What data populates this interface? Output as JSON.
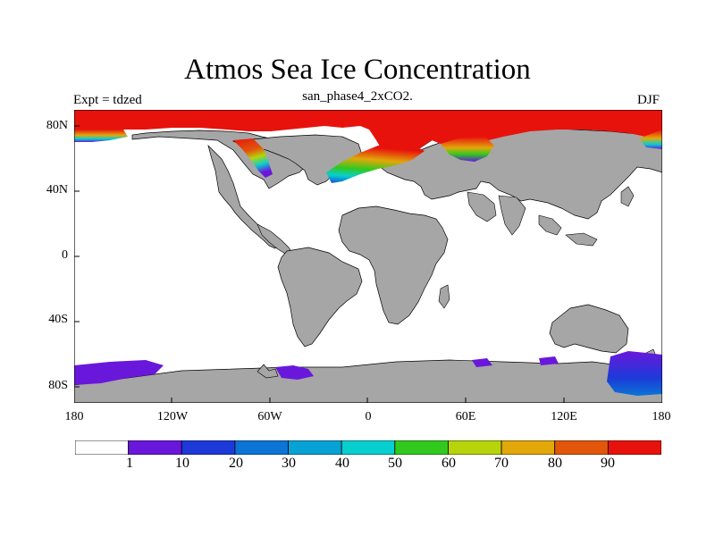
{
  "title": "Atmos Sea Ice Concentration",
  "subtitle": "san_phase4_2xCO2.",
  "left_label": "Expt = tdzed",
  "right_label": "DJF",
  "lat_labels": [
    "80N",
    "40N",
    "0",
    "40S",
    "80S"
  ],
  "lon_labels": [
    "180",
    "120W",
    "60W",
    "0",
    "60E",
    "120E",
    "180"
  ],
  "colorbar": {
    "colors": [
      "#ffffff",
      "#6a17dc",
      "#1d3ad8",
      "#0b74d6",
      "#06a2d6",
      "#08cfcf",
      "#31c91e",
      "#b5d40a",
      "#e2a80a",
      "#e2570c",
      "#e8120c"
    ],
    "labels": [
      "1",
      "10",
      "20",
      "30",
      "40",
      "50",
      "60",
      "70",
      "80",
      "90"
    ]
  },
  "colors": {
    "land": "#a6a6a6",
    "ocean": "#ffffff",
    "ice_high": "#e8120c"
  }
}
